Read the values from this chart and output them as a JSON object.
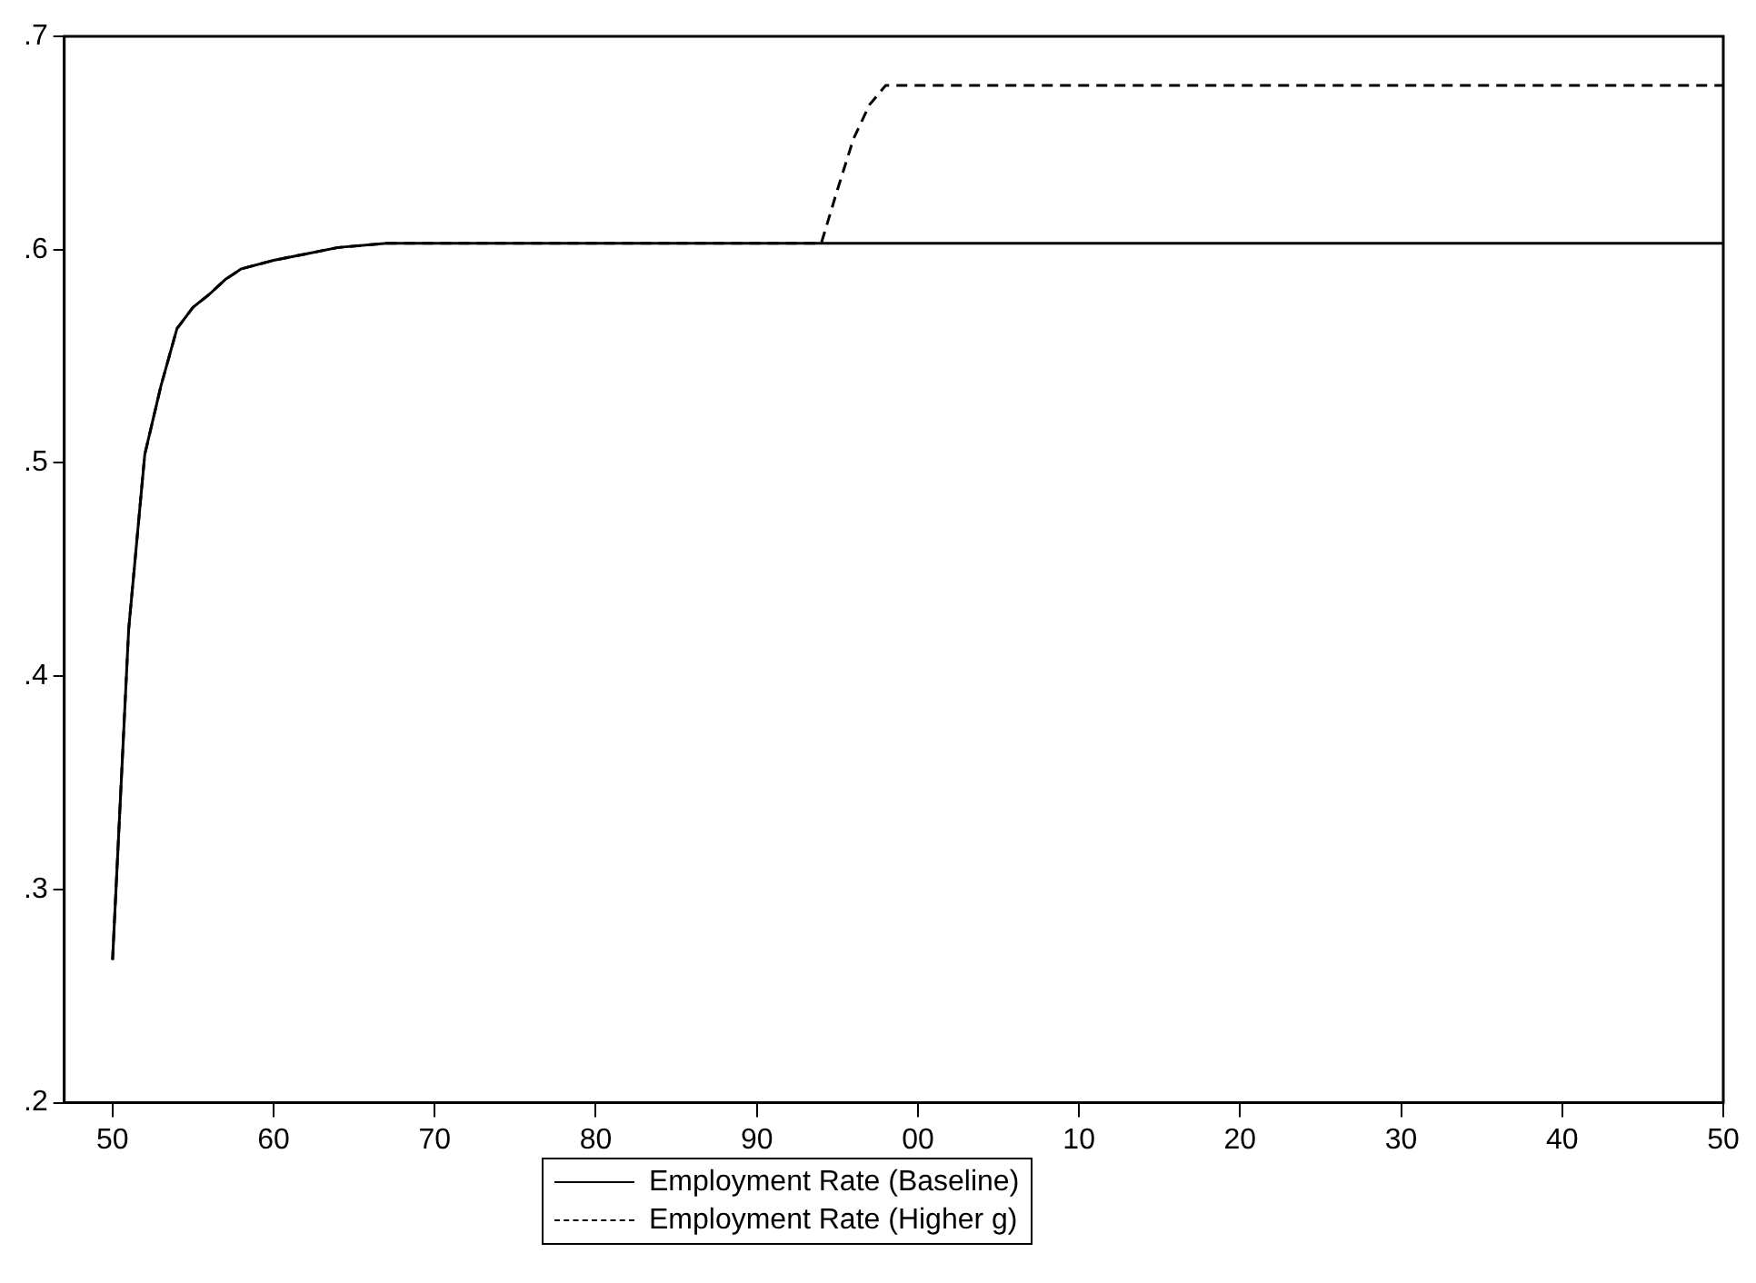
{
  "chart_data": {
    "type": "line",
    "marker": "none",
    "legend": "bottom",
    "grid": false,
    "xlim": [
      1947,
      2050
    ],
    "xticks": [
      {
        "value": 1950,
        "label": "50"
      },
      {
        "value": 1960,
        "label": "60"
      },
      {
        "value": 1970,
        "label": "70"
      },
      {
        "value": 1980,
        "label": "80"
      },
      {
        "value": 1990,
        "label": "90"
      },
      {
        "value": 2000,
        "label": "00"
      },
      {
        "value": 2010,
        "label": "10"
      },
      {
        "value": 2020,
        "label": "20"
      },
      {
        "value": 2030,
        "label": "30"
      },
      {
        "value": 2040,
        "label": "40"
      },
      {
        "value": 2050,
        "label": "50"
      }
    ],
    "ylim": [
      0.2,
      0.7
    ],
    "yticks": [
      {
        "value": 0.2,
        "label": ".2"
      },
      {
        "value": 0.3,
        "label": ".3"
      },
      {
        "value": 0.4,
        "label": ".4"
      },
      {
        "value": 0.5,
        "label": ".5"
      },
      {
        "value": 0.6,
        "label": ".6"
      },
      {
        "value": 0.7,
        "label": ".7"
      }
    ],
    "series": [
      {
        "name": "Employment Rate (Baseline)",
        "color": "#000000",
        "line_style": "solid",
        "x": [
          1950,
          1951,
          1952,
          1953,
          1954,
          1955,
          1956,
          1957,
          1958,
          1960,
          1962,
          1964,
          1967,
          2050
        ],
        "values": [
          0.267,
          0.422,
          0.504,
          0.536,
          0.563,
          0.573,
          0.579,
          0.586,
          0.591,
          0.595,
          0.598,
          0.601,
          0.603,
          0.603
        ]
      },
      {
        "name": "Employment Rate (Higher g)",
        "color": "#000000",
        "line_style": "dashed",
        "x": [
          1950,
          1951,
          1952,
          1953,
          1954,
          1955,
          1956,
          1957,
          1958,
          1960,
          1962,
          1964,
          1967,
          1994,
          1995,
          1996,
          1997,
          1998,
          2050
        ],
        "values": [
          0.267,
          0.422,
          0.504,
          0.536,
          0.563,
          0.573,
          0.579,
          0.586,
          0.591,
          0.595,
          0.598,
          0.601,
          0.603,
          0.603,
          0.628,
          0.652,
          0.668,
          0.677,
          0.677
        ]
      }
    ]
  }
}
